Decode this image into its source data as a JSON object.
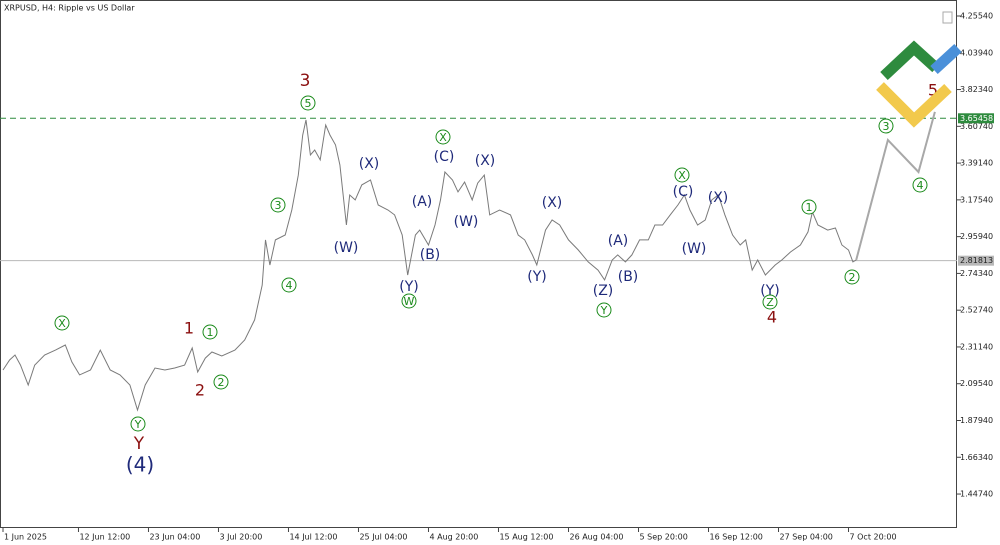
{
  "chart_data": {
    "type": "line",
    "title": "XRPUSD, H4:  Ripple vs US Dollar",
    "xlim": [
      -2.74,
      872.2
    ],
    "ylim": [
      1.2479,
      4.3494
    ],
    "xticks": [
      {
        "value": 0,
        "label": "1 Jun 2025"
      },
      {
        "value": 69,
        "label": "12 Jun 12:00"
      },
      {
        "value": 133,
        "label": "23 Jun 04:00"
      },
      {
        "value": 197,
        "label": "3 Jul 20:00"
      },
      {
        "value": 261,
        "label": "14 Jul 12:00"
      },
      {
        "value": 325,
        "label": "25 Jul 04:00"
      },
      {
        "value": 389,
        "label": "4 Aug 20:00"
      },
      {
        "value": 453,
        "label": "15 Aug 12:00"
      },
      {
        "value": 517,
        "label": "26 Aug 04:00"
      },
      {
        "value": 581,
        "label": "5 Sep 20:00"
      },
      {
        "value": 645,
        "label": "16 Sep 12:00"
      },
      {
        "value": 709,
        "label": "27 Sep 04:00"
      },
      {
        "value": 773,
        "label": "7 Oct 20:00"
      }
    ],
    "yticks": [
      {
        "value": 1.4474,
        "label": "1.44740"
      },
      {
        "value": 1.6634,
        "label": "1.66340"
      },
      {
        "value": 1.8794,
        "label": "1.87940"
      },
      {
        "value": 2.0954,
        "label": "2.09540"
      },
      {
        "value": 2.3114,
        "label": "2.31140"
      },
      {
        "value": 2.5274,
        "label": "2.52740"
      },
      {
        "value": 2.7434,
        "label": "2.74340"
      },
      {
        "value": 2.9594,
        "label": "2.95940"
      },
      {
        "value": 3.1754,
        "label": "3.17540"
      },
      {
        "value": 3.3914,
        "label": "3.39140"
      },
      {
        "value": 3.6074,
        "label": "3.60740"
      },
      {
        "value": 3.8234,
        "label": "3.82340"
      },
      {
        "value": 4.0394,
        "label": "4.03940"
      },
      {
        "value": 4.2554,
        "label": "4.25540"
      }
    ],
    "grid": false,
    "series": [
      {
        "color": "#7a7a7a",
        "x": [
          0,
          6,
          11,
          16,
          23,
          29,
          38,
          48,
          57,
          63,
          70,
          80,
          89,
          98,
          107,
          116,
          123,
          130,
          139,
          148,
          157,
          166,
          173,
          178,
          185,
          191,
          200,
          212,
          221,
          230,
          237,
          240,
          244,
          249,
          258,
          264,
          270,
          274,
          277,
          281,
          285,
          290,
          295,
          299,
          304,
          308,
          314,
          317,
          322,
          328,
          336,
          343,
          352,
          358,
          365,
          370,
          377,
          381,
          389,
          395,
          400,
          404,
          411,
          416,
          422,
          429,
          434,
          440,
          445,
          454,
          464,
          471,
          477,
          484,
          488,
          496,
          502,
          509,
          517,
          526,
          535,
          544,
          550,
          557,
          562,
          569,
          575,
          582,
          590,
          596,
          603,
          610,
          617,
          623,
          628,
          635,
          642,
          648,
          654,
          660,
          667,
          674,
          679,
          685,
          690,
          697,
          706,
          712,
          720,
          729,
          736,
          740,
          745,
          754,
          761,
          767,
          773,
          777,
          780
        ],
        "values": [
          2.176,
          2.235,
          2.264,
          2.205,
          2.088,
          2.205,
          2.264,
          2.293,
          2.323,
          2.223,
          2.147,
          2.176,
          2.293,
          2.176,
          2.147,
          2.088,
          1.941,
          2.088,
          2.188,
          2.176,
          2.188,
          2.205,
          2.305,
          2.164,
          2.246,
          2.282,
          2.258,
          2.293,
          2.352,
          2.47,
          2.675,
          2.94,
          2.793,
          2.94,
          2.969,
          3.116,
          3.321,
          3.556,
          3.645,
          3.439,
          3.468,
          3.41,
          3.615,
          3.556,
          3.498,
          3.38,
          3.028,
          3.204,
          3.175,
          3.263,
          3.292,
          3.145,
          3.116,
          3.087,
          2.969,
          2.734,
          2.969,
          2.998,
          2.91,
          3.028,
          3.175,
          3.339,
          3.292,
          3.222,
          3.28,
          3.175,
          3.274,
          3.321,
          3.087,
          3.116,
          3.087,
          2.969,
          2.94,
          2.852,
          2.793,
          2.998,
          3.057,
          3.028,
          2.94,
          2.881,
          2.811,
          2.763,
          2.705,
          2.822,
          2.852,
          2.811,
          2.852,
          2.94,
          2.94,
          3.028,
          3.028,
          3.087,
          3.145,
          3.204,
          3.116,
          3.028,
          3.057,
          3.175,
          3.204,
          3.087,
          2.969,
          2.91,
          2.94,
          2.763,
          2.822,
          2.734,
          2.793,
          2.822,
          2.869,
          2.91,
          2.987,
          3.104,
          3.028,
          2.998,
          3.01,
          2.91,
          2.881,
          2.811,
          2.822
        ]
      },
      {
        "color": "#a8a8a8",
        "x": [
          780,
          809,
          837,
          852
        ],
        "values": [
          2.822,
          3.527,
          3.339,
          3.692
        ]
      }
    ],
    "hlines": [
      {
        "value": 3.65458,
        "color": "#2e8b3e",
        "dashed": true
      },
      {
        "value": 2.81813,
        "color": "#b8b8b8",
        "dashed": false
      }
    ],
    "annotations": [
      {
        "text": "(4)",
        "color": "#1f2a7a"
      },
      {
        "text": "Y",
        "color": "#8b1010"
      },
      {
        "text": "Y",
        "color": "#1a8a1a",
        "circled": true
      },
      {
        "text": "X",
        "color": "#1a8a1a",
        "circled": true
      },
      {
        "text": "1",
        "color": "#8b1010"
      },
      {
        "text": "1",
        "color": "#1a8a1a",
        "circled": true
      },
      {
        "text": "2",
        "color": "#8b1010"
      },
      {
        "text": "2",
        "color": "#1a8a1a",
        "circled": true
      },
      {
        "text": "3",
        "color": "#8b1010"
      },
      {
        "text": "5",
        "color": "#1a8a1a",
        "circled": true
      },
      {
        "text": "3",
        "color": "#1a8a1a",
        "circled": true
      },
      {
        "text": "4",
        "color": "#1a8a1a",
        "circled": true
      },
      {
        "text": "(W)",
        "color": "#1f2a7a"
      },
      {
        "text": "(X)",
        "color": "#1f2a7a"
      },
      {
        "text": "(A)",
        "color": "#1f2a7a"
      },
      {
        "text": "(B)",
        "color": "#1f2a7a"
      },
      {
        "text": "(Y)",
        "color": "#1f2a7a"
      },
      {
        "text": "W",
        "color": "#1a8a1a",
        "circled": true
      },
      {
        "text": "X",
        "color": "#1a8a1a",
        "circled": true
      },
      {
        "text": "(C)",
        "color": "#1f2a7a"
      },
      {
        "text": "(W)",
        "color": "#1f2a7a"
      },
      {
        "text": "(X)",
        "color": "#1f2a7a"
      },
      {
        "text": "(X)",
        "color": "#1f2a7a"
      },
      {
        "text": "(Y)",
        "color": "#1f2a7a"
      },
      {
        "text": "(A)",
        "color": "#1f2a7a"
      },
      {
        "text": "(B)",
        "color": "#1f2a7a"
      },
      {
        "text": "(Z)",
        "color": "#1f2a7a"
      },
      {
        "text": "Y",
        "color": "#1a8a1a",
        "circled": true
      },
      {
        "text": "X",
        "color": "#1a8a1a",
        "circled": true
      },
      {
        "text": "(C)",
        "color": "#1f2a7a"
      },
      {
        "text": "(W)",
        "color": "#1f2a7a"
      },
      {
        "text": "(X)",
        "color": "#1f2a7a"
      },
      {
        "text": "(Y)",
        "color": "#1f2a7a"
      },
      {
        "text": "Z",
        "color": "#1a8a1a",
        "circled": true
      },
      {
        "text": "4",
        "color": "#8b1010"
      },
      {
        "text": "1",
        "color": "#1a8a1a",
        "circled": true
      },
      {
        "text": "2",
        "color": "#1a8a1a",
        "circled": true
      },
      {
        "text": "3",
        "color": "#1a8a1a",
        "circled": true
      },
      {
        "text": "4",
        "color": "#1a8a1a",
        "circled": true
      },
      {
        "text": "5",
        "color": "#8b1010"
      }
    ]
  }
}
